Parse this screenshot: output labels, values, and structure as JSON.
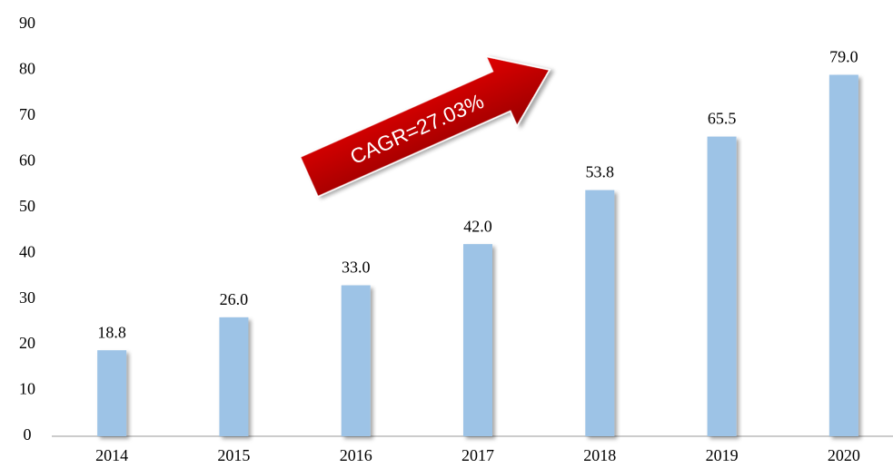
{
  "chart_data": {
    "type": "bar",
    "categories": [
      "2014",
      "2015",
      "2016",
      "2017",
      "2018",
      "2019",
      "2020"
    ],
    "values": [
      18.8,
      26,
      33,
      42,
      53.8,
      65.5,
      79
    ],
    "value_labels": [
      "18.8",
      "26.0",
      "33.0",
      "42.0",
      "53.8",
      "65.5",
      "79.0"
    ],
    "color": "#9dc3e6",
    "ylim": [
      0,
      90
    ],
    "yticks": [
      0,
      10,
      20,
      30,
      40,
      50,
      60,
      70,
      80,
      90
    ],
    "grid": false,
    "annotation": "CAGR=27.03%"
  }
}
